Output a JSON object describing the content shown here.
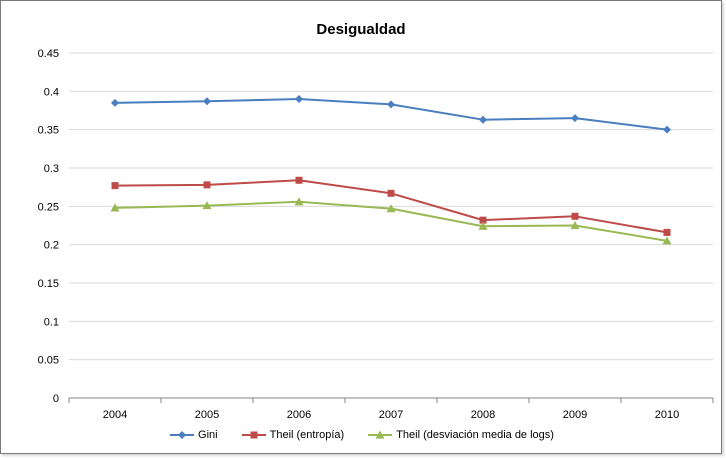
{
  "chart_data": {
    "type": "line",
    "title": "Desigualdad",
    "xlabel": "",
    "ylabel": "",
    "categories": [
      "2004",
      "2005",
      "2006",
      "2007",
      "2008",
      "2009",
      "2010"
    ],
    "ylim": [
      0,
      0.45
    ],
    "yticks": [
      "0",
      "0.05",
      "0.1",
      "0.15",
      "0.2",
      "0.25",
      "0.3",
      "0.35",
      "0.4",
      "0.45"
    ],
    "grid": true,
    "legend_position": "bottom",
    "series": [
      {
        "name": "Gini",
        "color": "#4a7ebf",
        "marker": "diamond",
        "values": [
          0.385,
          0.387,
          0.39,
          0.383,
          0.363,
          0.365,
          0.35
        ]
      },
      {
        "name": "Theil (entropía)",
        "color": "#be4b48",
        "marker": "square",
        "values": [
          0.277,
          0.278,
          0.284,
          0.267,
          0.232,
          0.237,
          0.216
        ]
      },
      {
        "name": "Theil (desviación media de logs)",
        "color": "#98b954",
        "marker": "triangle",
        "values": [
          0.248,
          0.251,
          0.256,
          0.247,
          0.224,
          0.225,
          0.205
        ]
      }
    ]
  }
}
